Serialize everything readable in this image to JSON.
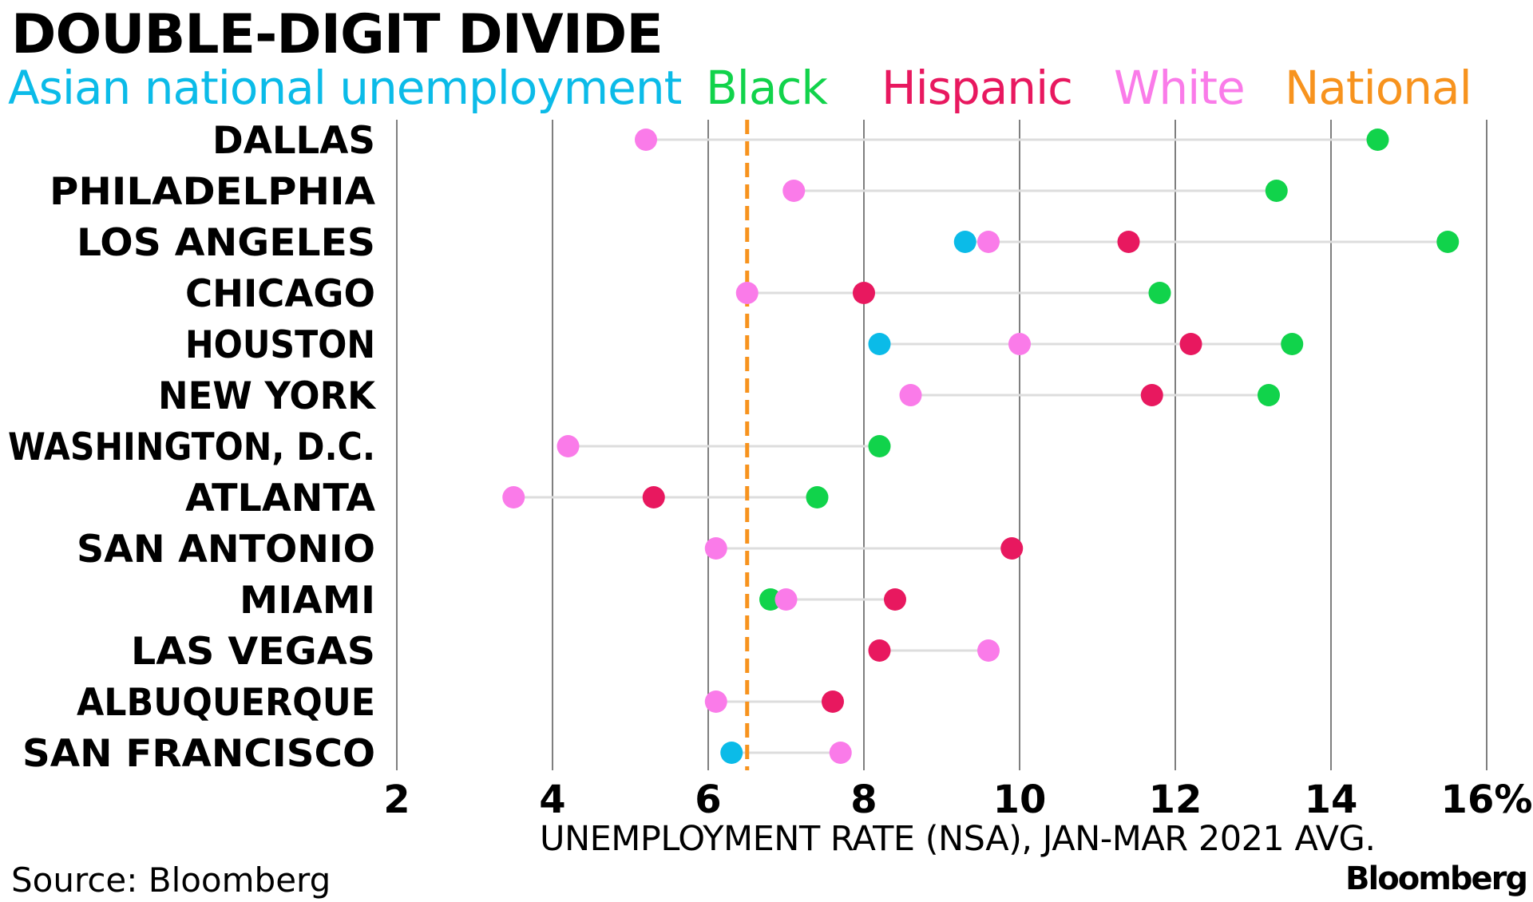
{
  "title": "DOUBLE-DIGIT DIVIDE",
  "legend": [
    {
      "key": "asian",
      "label": "Asian national unemployment",
      "color": "#0BBBE8"
    },
    {
      "key": "black",
      "label": "Black",
      "color": "#11D34B"
    },
    {
      "key": "hispanic",
      "label": "Hispanic",
      "color": "#E8185F"
    },
    {
      "key": "white",
      "label": "White",
      "color": "#FA7BE9"
    },
    {
      "key": "national",
      "label": "National",
      "color": "#F7931E"
    }
  ],
  "source": "Source: Bloomberg",
  "brand": "Bloomberg",
  "chart_data": {
    "type": "dot-plot",
    "title": "DOUBLE-DIGIT DIVIDE",
    "xlabel": "UNEMPLOYMENT RATE (NSA), JAN-MAR 2021 AVG.",
    "xlim": [
      2,
      16
    ],
    "x_ticks": [
      2,
      4,
      6,
      8,
      10,
      12,
      14,
      16
    ],
    "x_tick_labels": [
      "2",
      "4",
      "6",
      "8",
      "10",
      "12",
      "14",
      "16%"
    ],
    "national_rate": 6.5,
    "categories": [
      "DALLAS",
      "PHILADELPHIA",
      "LOS ANGELES",
      "CHICAGO",
      "HOUSTON",
      "NEW YORK",
      "WASHINGTON, D.C.",
      "ATLANTA",
      "SAN ANTONIO",
      "MIAMI",
      "LAS VEGAS",
      "ALBUQUERQUE",
      "SAN FRANCISCO"
    ],
    "series": [
      {
        "name": "White",
        "key": "white",
        "values": [
          5.2,
          7.1,
          9.6,
          6.5,
          10.0,
          8.6,
          4.2,
          3.5,
          6.1,
          7.0,
          9.6,
          6.1,
          7.7
        ]
      },
      {
        "name": "Black",
        "key": "black",
        "values": [
          14.6,
          13.3,
          15.5,
          11.8,
          13.5,
          13.2,
          8.2,
          7.4,
          null,
          6.8,
          null,
          null,
          null
        ]
      },
      {
        "name": "Hispanic",
        "key": "hispanic",
        "values": [
          null,
          null,
          11.4,
          8.0,
          12.2,
          11.7,
          null,
          5.3,
          9.9,
          8.4,
          8.2,
          7.6,
          null
        ]
      },
      {
        "name": "Asian",
        "key": "asian",
        "values": [
          null,
          null,
          9.3,
          null,
          8.2,
          null,
          null,
          null,
          null,
          null,
          null,
          null,
          6.3
        ]
      }
    ],
    "grid": true
  }
}
